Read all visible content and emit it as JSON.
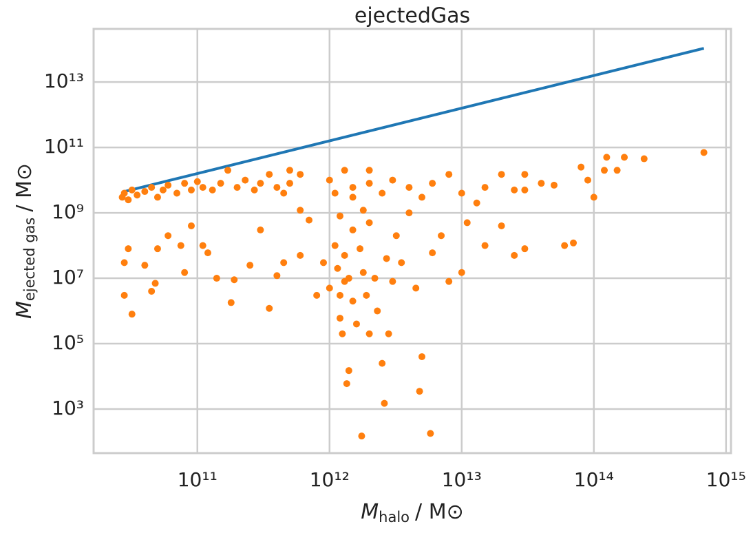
{
  "chart_data": {
    "type": "scatter",
    "title": "ejectedGas",
    "x_label": {
      "symbol": "M",
      "subscript": "halo",
      "unit": "/ M⊙"
    },
    "y_label": {
      "symbol": "M",
      "subscript": "ejected gas",
      "unit": "/ M⊙"
    },
    "log_x": true,
    "log_y": true,
    "grid": true,
    "xlim": [
      16400000000.0,
      1090000000000000.0
    ],
    "ylim": [
      45,
      420000000000000.0
    ],
    "xticks": [
      {
        "value": 100000000000.0,
        "label": "10¹¹"
      },
      {
        "value": 1000000000000.0,
        "label": "10¹²"
      },
      {
        "value": 10000000000000.0,
        "label": "10¹³"
      },
      {
        "value": 100000000000000.0,
        "label": "10¹⁴"
      },
      {
        "value": 1000000000000000.0,
        "label": "10¹⁵"
      }
    ],
    "yticks": [
      {
        "value": 1000.0,
        "label": "10³"
      },
      {
        "value": 100000.0,
        "label": "10⁵"
      },
      {
        "value": 10000000.0,
        "label": "10⁷"
      },
      {
        "value": 1000000000.0,
        "label": "10⁹"
      },
      {
        "value": 100000000000.0,
        "label": "10¹¹"
      },
      {
        "value": 10000000000000.0,
        "label": "10¹³"
      }
    ],
    "line": {
      "color": "#1f77b4",
      "x": [
        27000000000.0,
        680000000000000.0
      ],
      "values": [
        4300000000.0,
        107000000000000.0
      ]
    },
    "points": {
      "color": "#ff7f0e",
      "x": [
        27000000000.0,
        28000000000.0,
        30000000000.0,
        32000000000.0,
        35000000000.0,
        40000000000.0,
        45000000000.0,
        50000000000.0,
        55000000000.0,
        60000000000.0,
        70000000000.0,
        80000000000.0,
        90000000000.0,
        100000000000.0,
        110000000000.0,
        130000000000.0,
        150000000000.0,
        170000000000.0,
        200000000000.0,
        230000000000.0,
        270000000000.0,
        300000000000.0,
        350000000000.0,
        400000000000.0,
        450000000000.0,
        500000000000.0,
        600000000000.0,
        30000000000.0,
        28000000000.0,
        28000000000.0,
        32000000000.0,
        40000000000.0,
        45000000000.0,
        48000000000.0,
        50000000000.0,
        60000000000.0,
        75000000000.0,
        80000000000.0,
        90000000000.0,
        110000000000.0,
        120000000000.0,
        140000000000.0,
        180000000000.0,
        190000000000.0,
        250000000000.0,
        350000000000.0,
        300000000000.0,
        400000000000.0,
        450000000000.0,
        600000000000.0,
        700000000000.0,
        800000000000.0,
        900000000000.0,
        1000000000000.0,
        1100000000000.0,
        1150000000000.0,
        1200000000000.0,
        1200000000000.0,
        1250000000000.0,
        1300000000000.0,
        1300000000000.0,
        1400000000000.0,
        1400000000000.0,
        1350000000000.0,
        1500000000000.0,
        1500000000000.0,
        1600000000000.0,
        1700000000000.0,
        1750000000000.0,
        1800000000000.0,
        1900000000000.0,
        2000000000000.0,
        2000000000000.0,
        2200000000000.0,
        2300000000000.0,
        2500000000000.0,
        2600000000000.0,
        2700000000000.0,
        2800000000000.0,
        3000000000000.0,
        3200000000000.0,
        3500000000000.0,
        4000000000000.0,
        4500000000000.0,
        5000000000000.0,
        4800000000000.0,
        5800000000000.0,
        6000000000000.0,
        7000000000000.0,
        8000000000000.0,
        10000000000000.0,
        11000000000000.0,
        13000000000000.0,
        15000000000000.0,
        20000000000000.0,
        25000000000000.0,
        30000000000000.0,
        30000000000000.0,
        1500000000000.0,
        2000000000000.0,
        2500000000000.0,
        3000000000000.0,
        4000000000000.0,
        5000000000000.0,
        6000000000000.0,
        8000000000000.0,
        10000000000000.0,
        15000000000000.0,
        20000000000000.0,
        25000000000000.0,
        30000000000000.0,
        40000000000000.0,
        50000000000000.0,
        60000000000000.0,
        70000000000000.0,
        80000000000000.0,
        90000000000000.0,
        100000000000000.0,
        120000000000000.0,
        125000000000000.0,
        150000000000000.0,
        170000000000000.0,
        240000000000000.0,
        680000000000000.0,
        1500000000000.0,
        1200000000000.0,
        1800000000000.0,
        1100000000000.0,
        600000000000.0,
        500000000000.0,
        2000000000000.0,
        1300000000000.0,
        1000000000000.0
      ],
      "values": [
        3000000000.0,
        4000000000.0,
        2500000000.0,
        5000000000.0,
        3500000000.0,
        4500000000.0,
        6000000000.0,
        3000000000.0,
        5000000000.0,
        7000000000.0,
        4000000000.0,
        8000000000.0,
        5000000000.0,
        9000000000.0,
        6000000000.0,
        5000000000.0,
        8000000000.0,
        20000000000.0,
        6000000000.0,
        10000000000.0,
        5000000000.0,
        8000000000.0,
        15000000000.0,
        6000000000.0,
        4000000000.0,
        8000000000.0,
        15000000000.0,
        80000000.0,
        30000000.0,
        3000000.0,
        800000.0,
        25000000.0,
        4000000.0,
        7000000.0,
        80000000.0,
        200000000.0,
        100000000.0,
        15000000.0,
        400000000.0,
        100000000.0,
        60000000.0,
        10000000.0,
        1800000.0,
        9000000.0,
        25000000.0,
        1200000.0,
        300000000.0,
        12000000.0,
        30000000.0,
        50000000.0,
        600000000.0,
        3000000.0,
        30000000.0,
        5000000.0,
        100000000.0,
        20000000.0,
        3000000.0,
        600000.0,
        200000.0,
        50000000.0,
        8000000.0,
        10000000.0,
        15000.0,
        6000.0,
        300000000.0,
        2000000.0,
        400000.0,
        80000000.0,
        150.0,
        15000000.0,
        3000000.0,
        500000000.0,
        200000.0,
        10000000.0,
        1000000.0,
        25000.0,
        1500.0,
        40000000.0,
        200000.0,
        8000000.0,
        200000000.0,
        30000000.0,
        1000000000.0,
        5000000.0,
        40000.0,
        3500.0,
        180.0,
        60000000.0,
        200000000.0,
        8000000.0,
        15000000.0,
        500000000.0,
        2000000000.0,
        100000000.0,
        400000000.0,
        50000000.0,
        80000000.0,
        5000000000.0,
        6000000000.0,
        8000000000.0,
        4000000000.0,
        10000000000.0,
        6000000000.0,
        3000000000.0,
        8000000000.0,
        15000000000.0,
        4000000000.0,
        6000000000.0,
        15000000000.0,
        5000000000.0,
        15000000000.0,
        8000000000.0,
        7000000000.0,
        100000000.0,
        120000000.0,
        25000000000.0,
        10000000000.0,
        3000000000.0,
        20000000000.0,
        50000000000.0,
        20000000000.0,
        50000000000.0,
        45000000000.0,
        70000000000.0,
        3000000000.0,
        800000000.0,
        1200000000.0,
        4000000000.0,
        1200000000.0,
        20000000000.0,
        20000000000.0,
        20000000000.0,
        10000000000.0
      ]
    }
  }
}
